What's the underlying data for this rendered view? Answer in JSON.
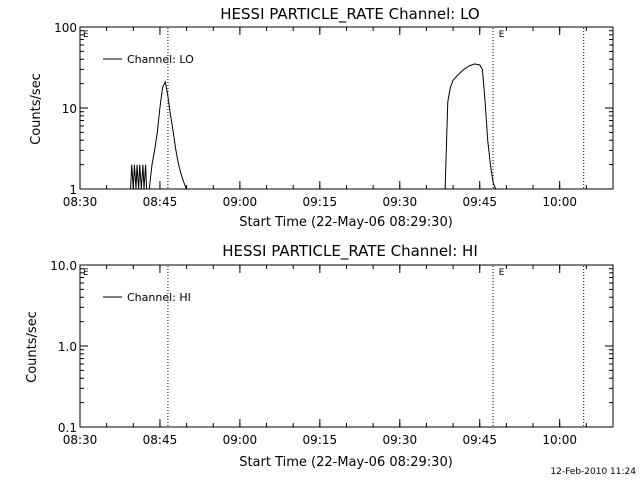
{
  "footer_timestamp": "12-Feb-2010 11:24",
  "chart_data": [
    {
      "type": "line",
      "title": "HESSI PARTICLE_RATE Channel: LO",
      "xlabel": "Start Time (22-May-06 08:29:30)",
      "ylabel": "Counts/sec",
      "y_scale": "log",
      "ylim": [
        1,
        100
      ],
      "xlim": [
        "08:30",
        "10:10"
      ],
      "x_ticks": [
        "08:30",
        "08:45",
        "09:00",
        "09:15",
        "09:30",
        "09:45",
        "10:00"
      ],
      "y_ticks": [
        "1",
        "10",
        "100"
      ],
      "legend_position": "top-left",
      "series": [
        {
          "name": "Channel: LO",
          "segments": [
            {
              "x": [
                "08:39.5",
                "08:39.7",
                "08:40.0",
                "08:40.2",
                "08:40.5",
                "08:40.7",
                "08:41.0",
                "08:41.2",
                "08:41.5",
                "08:41.8",
                "08:42.0",
                "08:42.3",
                "08:42.5"
              ],
              "y": [
                1,
                2,
                1,
                2,
                1,
                2,
                1,
                2,
                1,
                2,
                1,
                2,
                1
              ]
            },
            {
              "x": [
                "08:43.0",
                "08:43.5",
                "08:44.0",
                "08:44.5",
                "08:45.0",
                "08:45.5",
                "08:46.0",
                "08:46.5",
                "08:47.0",
                "08:47.5",
                "08:48.0",
                "08:48.5",
                "08:49.0",
                "08:49.5",
                "08:50.0"
              ],
              "y": [
                1,
                2,
                3,
                5,
                10,
                18,
                21,
                14,
                8,
                5,
                3,
                2,
                1.5,
                1.2,
                1
              ]
            },
            {
              "x": [
                "09:38.5",
                "09:39.0",
                "09:39.5",
                "09:40.0",
                "09:41.0",
                "09:42.0",
                "09:43.0",
                "09:44.0",
                "09:45.0",
                "09:45.5",
                "09:46.0",
                "09:46.5",
                "09:47.0",
                "09:47.5",
                "09:48.0"
              ],
              "y": [
                1,
                12,
                18,
                22,
                26,
                30,
                33,
                35,
                34,
                30,
                12,
                4,
                2,
                1.2,
                1
              ]
            }
          ]
        }
      ],
      "annotations": [
        {
          "text": "E",
          "x": "08:30"
        },
        {
          "text": "E",
          "x": "09:48"
        }
      ],
      "vertical_markers": [
        "08:46.5",
        "09:47.5",
        "10:04.5"
      ]
    },
    {
      "type": "line",
      "title": "HESSI PARTICLE_RATE Channel: HI",
      "xlabel": "Start Time (22-May-06 08:29:30)",
      "ylabel": "Counts/sec",
      "y_scale": "log",
      "ylim": [
        0.1,
        10.0
      ],
      "xlim": [
        "08:30",
        "10:10"
      ],
      "x_ticks": [
        "08:30",
        "08:45",
        "09:00",
        "09:15",
        "09:30",
        "09:45",
        "10:00"
      ],
      "y_ticks": [
        "0.1",
        "1.0",
        "10.0"
      ],
      "legend_position": "top-left",
      "series": [
        {
          "name": "Channel: HI",
          "segments": []
        }
      ],
      "annotations": [
        {
          "text": "E",
          "x": "08:30"
        },
        {
          "text": "E",
          "x": "09:48"
        }
      ],
      "vertical_markers": [
        "08:46.5",
        "09:47.5",
        "10:04.5"
      ]
    }
  ]
}
